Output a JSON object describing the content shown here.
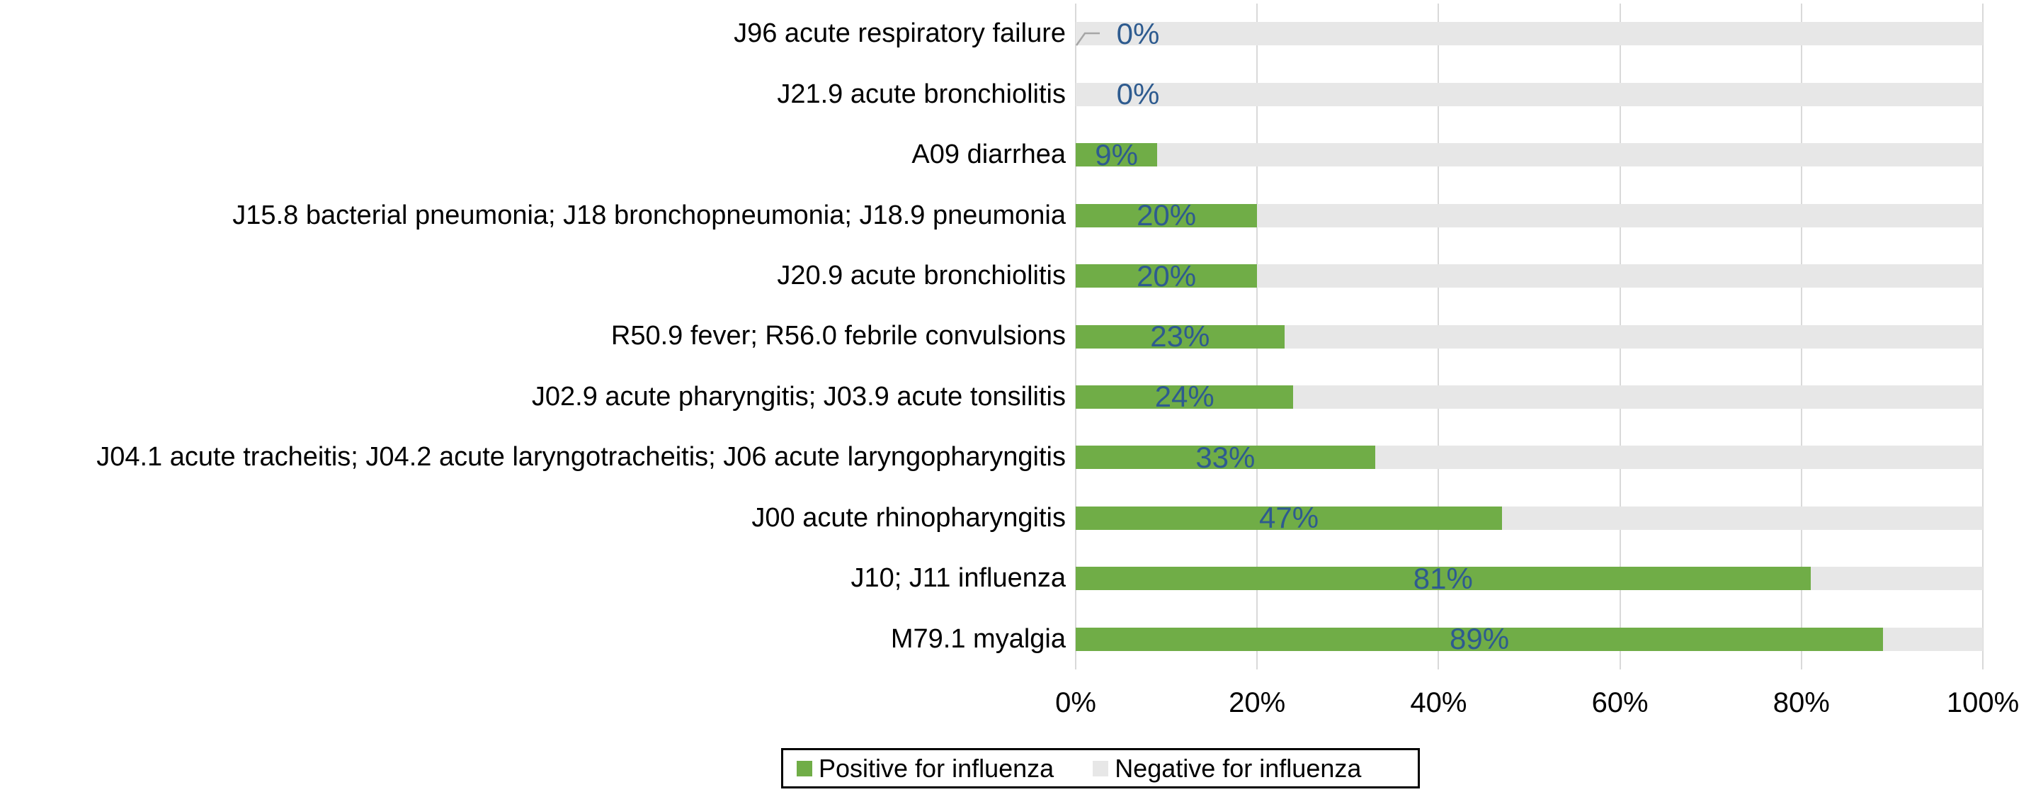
{
  "chart_data": {
    "type": "bar",
    "orientation": "horizontal-stacked-100pct",
    "title": "",
    "categories": [
      "J96 acute respiratory failure",
      "J21.9 acute bronchiolitis",
      "A09 diarrhea",
      "J15.8 bacterial pneumonia; J18 bronchopneumonia; J18.9 pneumonia",
      "J20.9 acute bronchiolitis",
      "R50.9 fever; R56.0 febrile convulsions",
      "J02.9 acute pharyngitis; J03.9 acute tonsilitis",
      "J04.1 acute tracheitis; J04.2 acute laryngotracheitis; J06 acute laryngopharyngitis",
      "J00 acute rhinopharyngitis",
      "J10; J11 influenza",
      "M79.1 myalgia"
    ],
    "series": [
      {
        "name": "Positive for influenza",
        "color": "#70AD47",
        "values": [
          0,
          0,
          9,
          20,
          20,
          23,
          24,
          33,
          47,
          81,
          89
        ]
      },
      {
        "name": "Negative for influenza",
        "color": "#E7E7E7",
        "values": [
          100,
          100,
          91,
          80,
          80,
          77,
          76,
          67,
          53,
          19,
          11
        ]
      }
    ],
    "data_labels": [
      "0%",
      "0%",
      "9%",
      "20%",
      "20%",
      "23%",
      "24%",
      "33%",
      "47%",
      "81%",
      "89%"
    ],
    "x_ticks": [
      "0%",
      "20%",
      "40%",
      "60%",
      "80%",
      "100%"
    ],
    "xlim": [
      0,
      100
    ],
    "grid": true,
    "legend_position": "bottom"
  },
  "legend": {
    "items": [
      {
        "label": "Positive for influenza",
        "color": "#70AD47"
      },
      {
        "label": "Negative for influenza",
        "color": "#E7E7E7"
      }
    ]
  },
  "annotations": {
    "leader_line_row": "J96 acute respiratory failure"
  },
  "colors": {
    "positive_bar": "#70AD47",
    "negative_bar": "#E7E7E7",
    "data_label_text": "#2E5B8F",
    "gridline": "#D9D9D9",
    "leader_line": "#A6A6A6",
    "axis_text": "#000000",
    "legend_border": "#000000",
    "background": "#FFFFFF"
  }
}
